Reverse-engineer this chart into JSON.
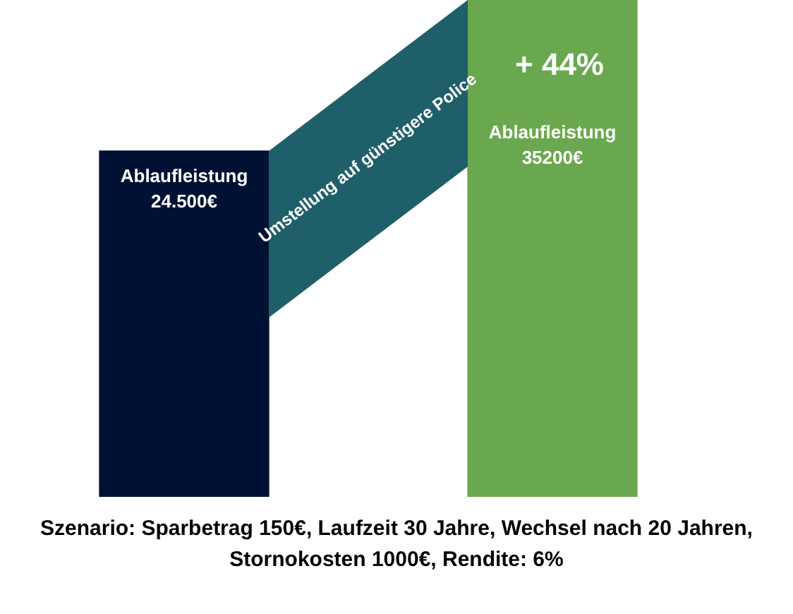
{
  "chart_data": {
    "type": "bar",
    "categories": [
      null,
      null
    ],
    "values": [
      24500,
      35200
    ],
    "colors": [
      "#001133",
      "#6aa84f"
    ],
    "value_labels": [
      "Ablaufleistung 24.500€",
      "Ablaufleistung 35200€"
    ],
    "annotations": [
      "+ 44%",
      "Umstellung auf günstigere Police",
      "Szenario: Sparbetrag 150€, Laufzeit 30 Jahre, Wechsel nach 20 Jahren, Stornokosten 1000€, Rendite: 6%"
    ],
    "tick_labels": false
  }
}
